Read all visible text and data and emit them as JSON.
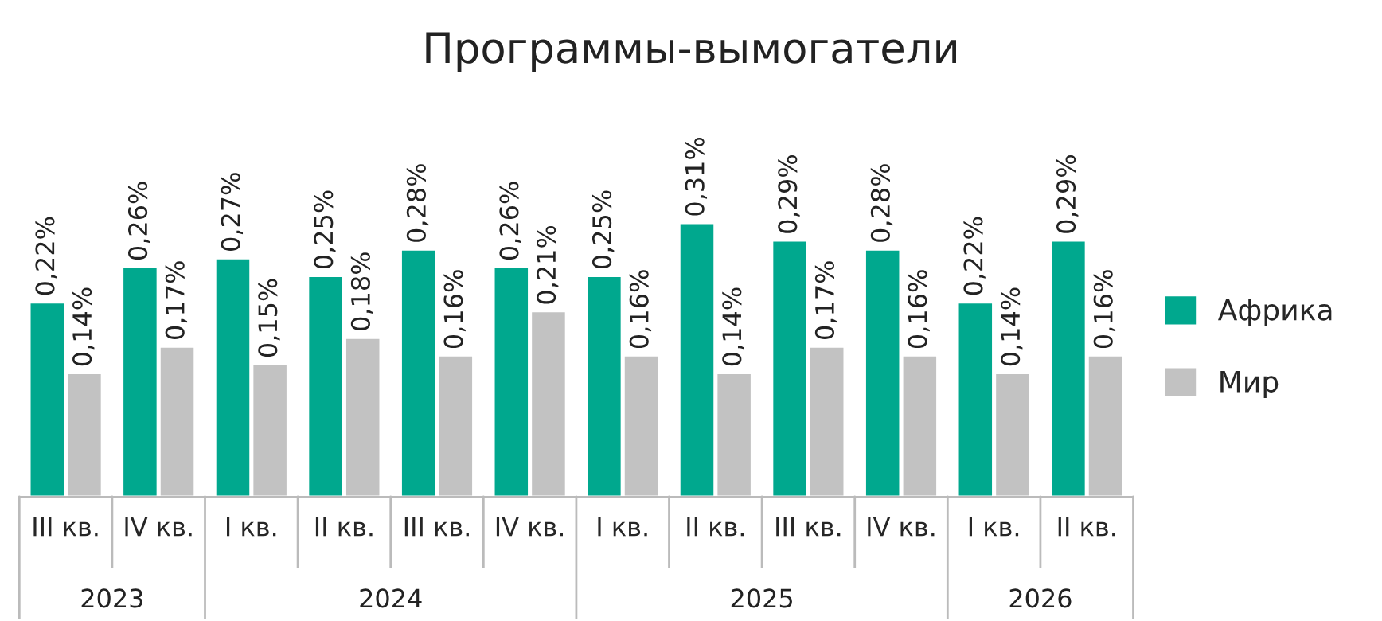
{
  "chart_data": {
    "type": "bar",
    "title": "Программы-вымогатели",
    "categories": [
      "III кв.",
      "IV кв.",
      "I кв.",
      "II кв.",
      "III кв.",
      "IV кв.",
      "I кв.",
      "II кв.",
      "III кв.",
      "IV кв.",
      "I кв.",
      "II кв."
    ],
    "annotations": [
      "2023",
      "2024",
      "2025",
      "2026"
    ],
    "series": [
      {
        "name": "Африка",
        "color": "#00a88e",
        "values": [
          0.22,
          0.26,
          0.27,
          0.25,
          0.28,
          0.26,
          0.25,
          0.31,
          0.29,
          0.28,
          0.22,
          0.29
        ],
        "value_labels": [
          "0,22%",
          "0,26%",
          "0,27%",
          "0,25%",
          "0,28%",
          "0,26%",
          "0,25%",
          "0,31%",
          "0,29%",
          "0,28%",
          "0,22%",
          "0,29%"
        ]
      },
      {
        "name": "Мир",
        "color": "#c2c2c2",
        "values": [
          0.14,
          0.17,
          0.15,
          0.18,
          0.16,
          0.21,
          0.16,
          0.14,
          0.17,
          0.16,
          0.14,
          0.16
        ],
        "value_labels": [
          "0,14%",
          "0,17%",
          "0,15%",
          "0,18%",
          "0,16%",
          "0,21%",
          "0,16%",
          "0,14%",
          "0,17%",
          "0,16%",
          "0,14%",
          "0,16%"
        ]
      }
    ],
    "legend": "right",
    "grid": false
  }
}
